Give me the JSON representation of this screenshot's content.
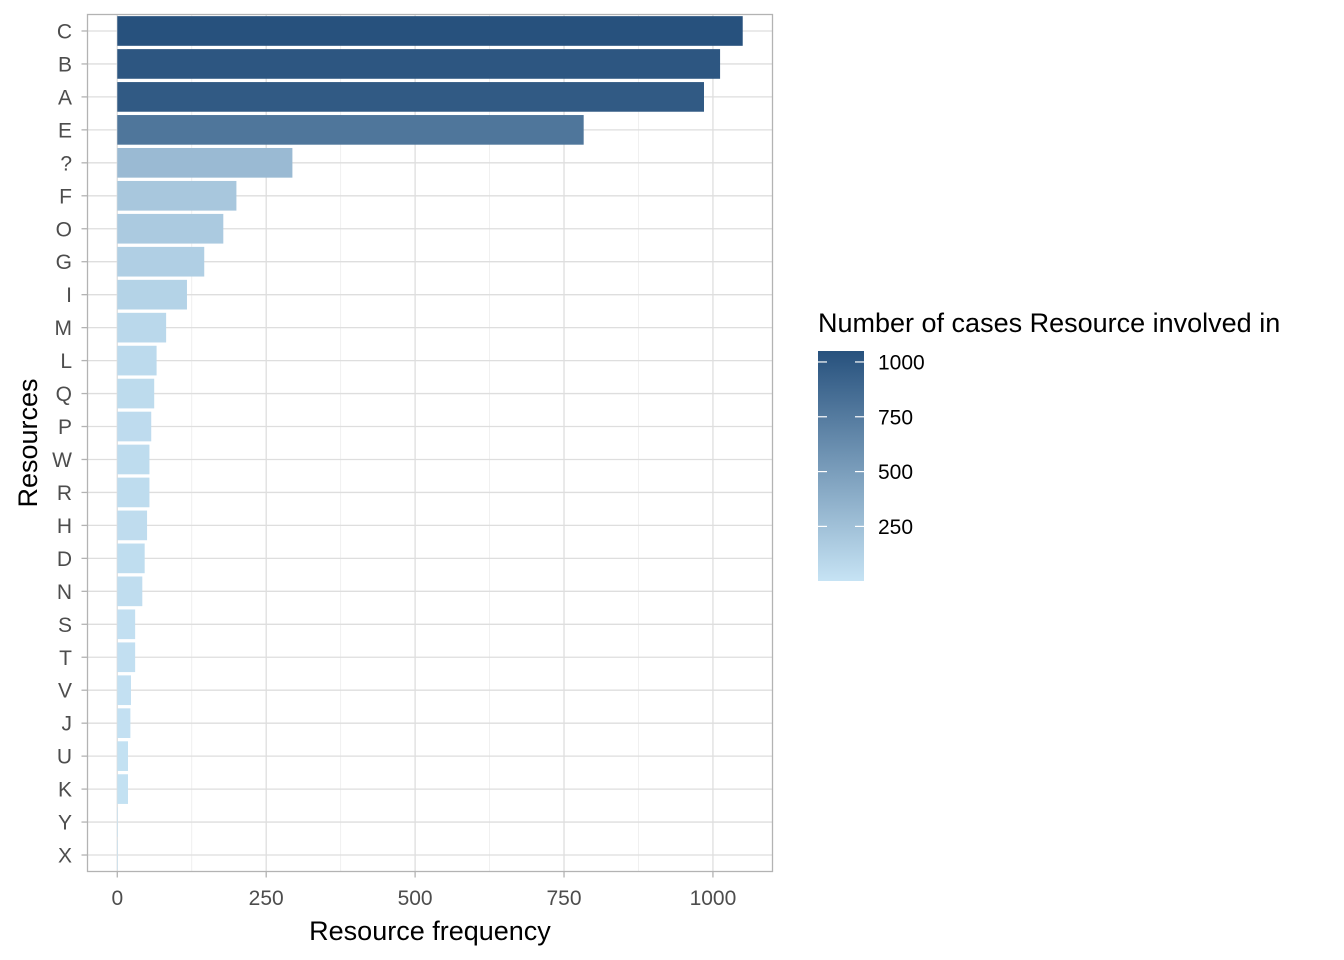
{
  "chart_data": {
    "type": "bar",
    "orientation": "horizontal",
    "xlabel": "Resource frequency",
    "ylabel": "Resources",
    "xlim": [
      -50,
      1100
    ],
    "xticks": [
      0,
      250,
      500,
      750,
      1000
    ],
    "xtick_labels": [
      "0",
      "250",
      "500",
      "750",
      "1000"
    ],
    "grid": true,
    "categories": [
      "C",
      "B",
      "A",
      "E",
      "?",
      "F",
      "O",
      "G",
      "I",
      "M",
      "L",
      "Q",
      "P",
      "W",
      "R",
      "H",
      "D",
      "N",
      "S",
      "T",
      "V",
      "J",
      "U",
      "K",
      "Y",
      "X"
    ],
    "values": [
      1050,
      1012,
      985,
      783,
      294,
      200,
      178,
      146,
      117,
      82,
      66,
      62,
      57,
      54,
      54,
      50,
      46,
      42,
      30,
      30,
      23,
      22,
      18,
      18,
      1,
      1
    ],
    "legend": {
      "title": "Number of cases Resource involved in",
      "placement": "right",
      "min": 1,
      "max": 1050,
      "ticks": [
        1000,
        750,
        500,
        250
      ],
      "tick_labels": [
        "1000",
        "750",
        "500",
        "250"
      ],
      "color_low": "#c6e3f4",
      "color_high": "#27517d"
    }
  }
}
